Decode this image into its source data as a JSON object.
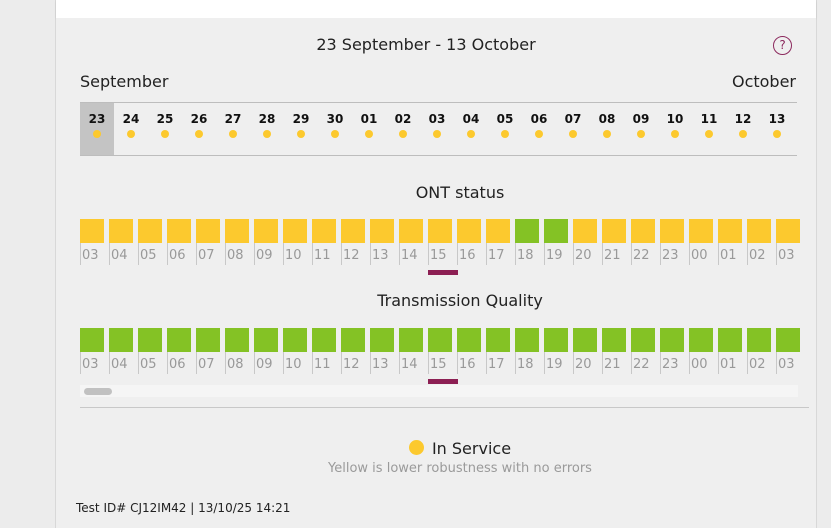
{
  "header": {
    "range_title": "23 September - 13 October",
    "help_icon": "question-icon",
    "help_glyph": "?",
    "month_start": "September",
    "month_end": "October"
  },
  "days": [
    {
      "label": "23",
      "selected": true,
      "status": "yellow"
    },
    {
      "label": "24",
      "selected": false,
      "status": "yellow"
    },
    {
      "label": "25",
      "selected": false,
      "status": "yellow"
    },
    {
      "label": "26",
      "selected": false,
      "status": "yellow"
    },
    {
      "label": "27",
      "selected": false,
      "status": "yellow"
    },
    {
      "label": "28",
      "selected": false,
      "status": "yellow"
    },
    {
      "label": "29",
      "selected": false,
      "status": "yellow"
    },
    {
      "label": "30",
      "selected": false,
      "status": "yellow"
    },
    {
      "label": "01",
      "selected": false,
      "status": "yellow"
    },
    {
      "label": "02",
      "selected": false,
      "status": "yellow"
    },
    {
      "label": "03",
      "selected": false,
      "status": "yellow"
    },
    {
      "label": "04",
      "selected": false,
      "status": "yellow"
    },
    {
      "label": "05",
      "selected": false,
      "status": "yellow"
    },
    {
      "label": "06",
      "selected": false,
      "status": "yellow"
    },
    {
      "label": "07",
      "selected": false,
      "status": "yellow"
    },
    {
      "label": "08",
      "selected": false,
      "status": "yellow"
    },
    {
      "label": "09",
      "selected": false,
      "status": "yellow"
    },
    {
      "label": "10",
      "selected": false,
      "status": "yellow"
    },
    {
      "label": "11",
      "selected": false,
      "status": "yellow"
    },
    {
      "label": "12",
      "selected": false,
      "status": "yellow"
    },
    {
      "label": "13",
      "selected": false,
      "status": "yellow"
    }
  ],
  "ont_status": {
    "title": "ONT status",
    "hours": [
      {
        "label": "03",
        "status": "yellow"
      },
      {
        "label": "04",
        "status": "yellow"
      },
      {
        "label": "05",
        "status": "yellow"
      },
      {
        "label": "06",
        "status": "yellow"
      },
      {
        "label": "07",
        "status": "yellow"
      },
      {
        "label": "08",
        "status": "yellow"
      },
      {
        "label": "09",
        "status": "yellow"
      },
      {
        "label": "10",
        "status": "yellow"
      },
      {
        "label": "11",
        "status": "yellow"
      },
      {
        "label": "12",
        "status": "yellow"
      },
      {
        "label": "13",
        "status": "yellow"
      },
      {
        "label": "14",
        "status": "yellow"
      },
      {
        "label": "15",
        "status": "yellow"
      },
      {
        "label": "16",
        "status": "yellow"
      },
      {
        "label": "17",
        "status": "yellow"
      },
      {
        "label": "18",
        "status": "green"
      },
      {
        "label": "19",
        "status": "green"
      },
      {
        "label": "20",
        "status": "yellow"
      },
      {
        "label": "21",
        "status": "yellow"
      },
      {
        "label": "22",
        "status": "yellow"
      },
      {
        "label": "23",
        "status": "yellow"
      },
      {
        "label": "00",
        "status": "yellow"
      },
      {
        "label": "01",
        "status": "yellow"
      },
      {
        "label": "02",
        "status": "yellow"
      },
      {
        "label": "03",
        "status": "yellow"
      }
    ],
    "current_hour": "15"
  },
  "transmission_quality": {
    "title": "Transmission Quality",
    "hours": [
      {
        "label": "03",
        "status": "green"
      },
      {
        "label": "04",
        "status": "green"
      },
      {
        "label": "05",
        "status": "green"
      },
      {
        "label": "06",
        "status": "green"
      },
      {
        "label": "07",
        "status": "green"
      },
      {
        "label": "08",
        "status": "green"
      },
      {
        "label": "09",
        "status": "green"
      },
      {
        "label": "10",
        "status": "green"
      },
      {
        "label": "11",
        "status": "green"
      },
      {
        "label": "12",
        "status": "green"
      },
      {
        "label": "13",
        "status": "green"
      },
      {
        "label": "14",
        "status": "green"
      },
      {
        "label": "15",
        "status": "green"
      },
      {
        "label": "16",
        "status": "green"
      },
      {
        "label": "17",
        "status": "green"
      },
      {
        "label": "18",
        "status": "green"
      },
      {
        "label": "19",
        "status": "green"
      },
      {
        "label": "20",
        "status": "green"
      },
      {
        "label": "21",
        "status": "green"
      },
      {
        "label": "22",
        "status": "green"
      },
      {
        "label": "23",
        "status": "green"
      },
      {
        "label": "00",
        "status": "green"
      },
      {
        "label": "01",
        "status": "green"
      },
      {
        "label": "02",
        "status": "green"
      },
      {
        "label": "03",
        "status": "green"
      }
    ],
    "current_hour": "15"
  },
  "legend": {
    "label": "In Service",
    "note": "Yellow is lower robustness with no errors"
  },
  "footer": {
    "test_id": "Test ID# CJ12IM42 | 13/10/25 14:21"
  },
  "colors": {
    "yellow": "#fcc92e",
    "green": "#84c225",
    "marker": "#8c1f53",
    "selected_day": "#c4c4c4",
    "help_accent": "#8c2a5e"
  }
}
